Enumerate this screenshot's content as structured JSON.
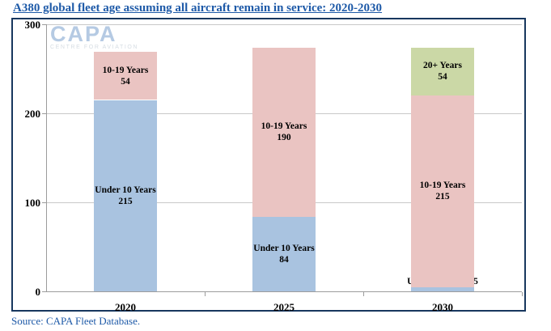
{
  "title": "A380 global fleet age assuming all aircraft remain in service: 2020-2030",
  "source": "Source: CAPA Fleet Database.",
  "logo": {
    "name": "CAPA",
    "tagline": "CENTRE FOR AVIATION"
  },
  "colors": {
    "title_blue": "#1E5AA8",
    "border_navy": "#17375E",
    "gridline_gray": "#C9C9C9",
    "axis_gray": "#9C9C9C",
    "segment_blue": "#A9C3E0",
    "segment_pink": "#EAC4C2",
    "segment_green": "#CBD8A6"
  },
  "chart_data": {
    "type": "bar",
    "subtype": "stacked",
    "title": "A380 global fleet age assuming all aircraft remain in service: 2020-2030",
    "categories": [
      "2020",
      "2025",
      "2030"
    ],
    "series": [
      {
        "name": "Under 10 Years",
        "color": "#A9C3E0",
        "values": [
          215,
          84,
          5
        ]
      },
      {
        "name": "10-19 Years",
        "color": "#EAC4C2",
        "values": [
          54,
          190,
          215
        ]
      },
      {
        "name": "20+ Years",
        "color": "#CBD8A6",
        "values": [
          null,
          null,
          54
        ]
      }
    ],
    "totals": [
      269,
      274,
      274
    ],
    "segment_labels": [
      [
        "Under 10 Years\n215",
        "10-19 Years\n54"
      ],
      [
        "Under 10 Years\n84",
        "10-19 Years\n190"
      ],
      [
        "Under 10 Years: 5",
        "10-19 Years\n215",
        "20+ Years\n54"
      ]
    ],
    "xlabel": "",
    "ylabel": "",
    "ylim": [
      0,
      300
    ],
    "yticks": [
      0,
      100,
      200,
      300
    ],
    "grid": true,
    "legend": "none",
    "source": "Source: CAPA Fleet Database."
  }
}
